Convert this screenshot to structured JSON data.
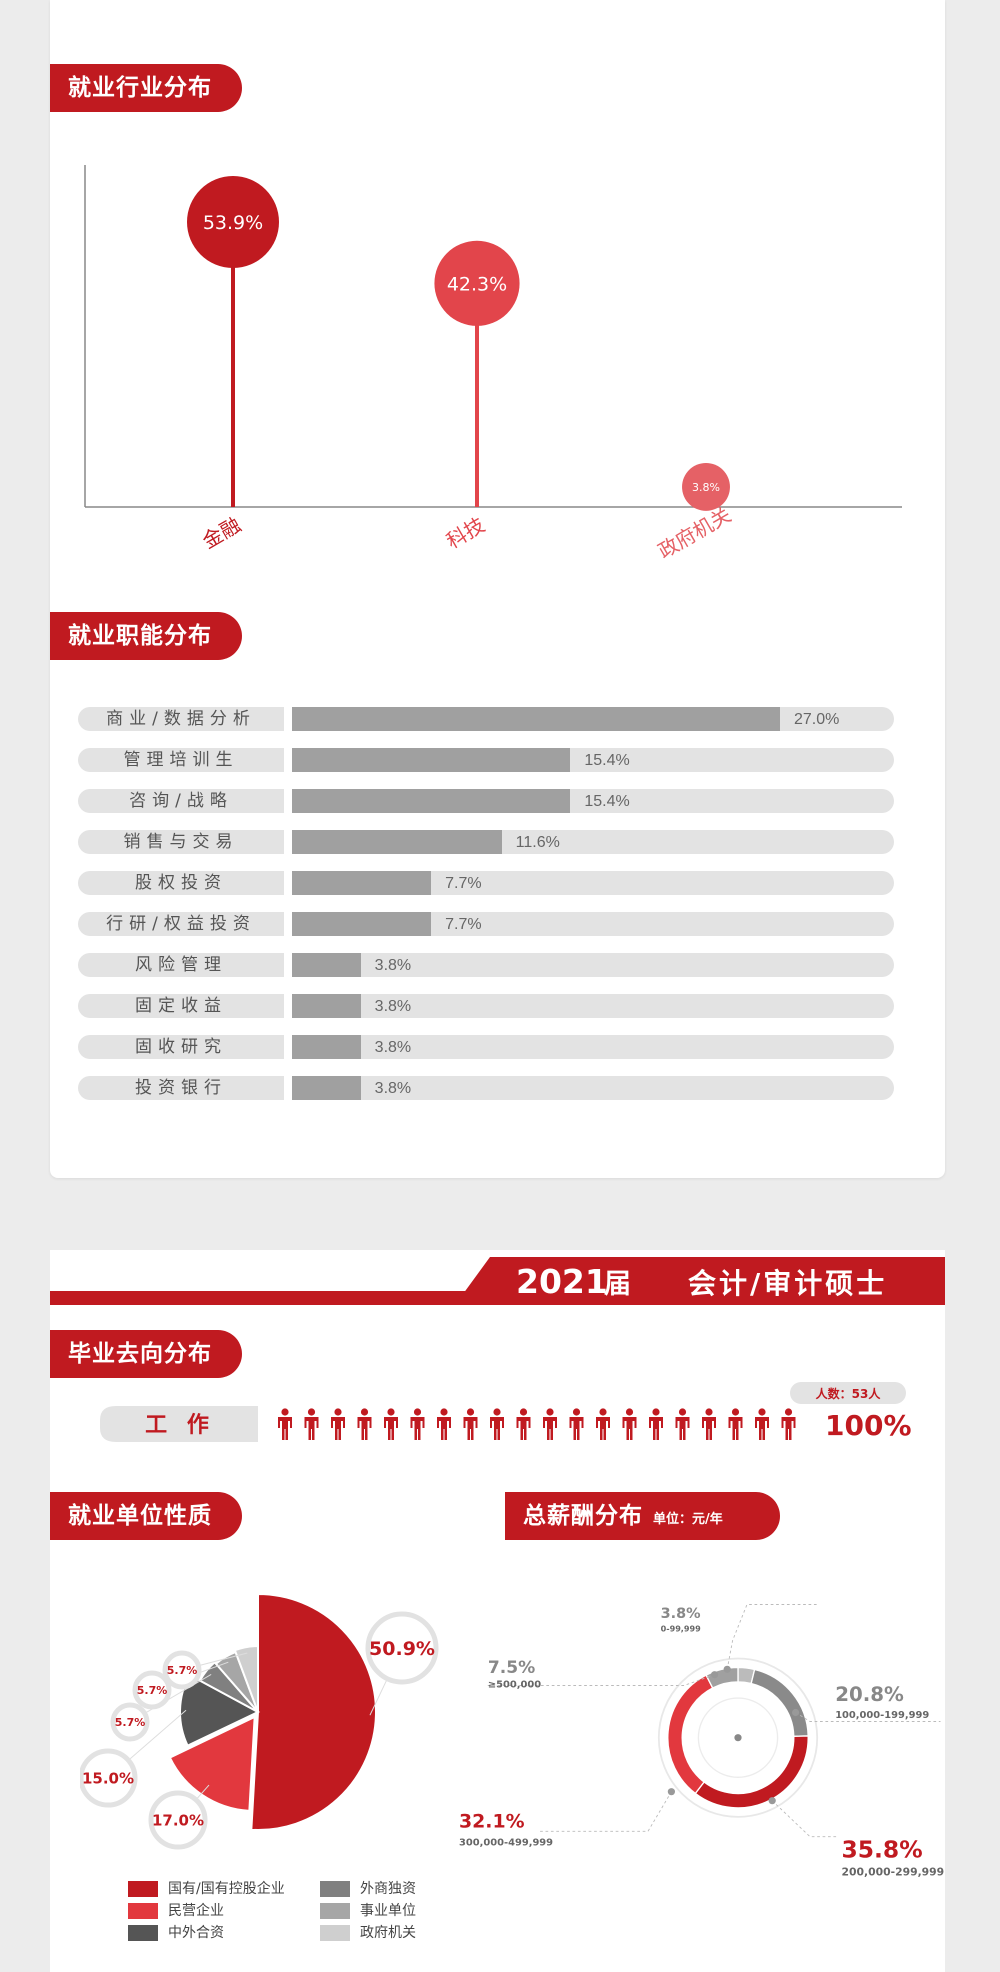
{
  "section1": {
    "title": "就业行业分布"
  },
  "industry_chart": {
    "type": "lollipop",
    "categories": [
      "金融",
      "科技",
      "政府机关"
    ],
    "values": [
      53.9,
      42.3,
      3.8
    ],
    "labels": [
      "53.9%",
      "42.3%",
      "3.8%"
    ],
    "colors": [
      "#c01a20",
      "#e2454b",
      "#e56166"
    ]
  },
  "section2": {
    "title": "就业职能分布"
  },
  "function_chart": {
    "type": "bar",
    "categories": [
      "商业/数据分析",
      "管理培训生",
      "咨询/战略",
      "销售与交易",
      "股权投资",
      "行研/权益投资",
      "风险管理",
      "固定收益",
      "固收研究",
      "投资银行"
    ],
    "values": [
      27.0,
      15.4,
      15.4,
      11.6,
      7.7,
      7.7,
      3.8,
      3.8,
      3.8,
      3.8
    ],
    "labels": [
      "27.0%",
      "15.4%",
      "15.4%",
      "11.6%",
      "7.7%",
      "7.7%",
      "3.8%",
      "3.8%",
      "3.8%",
      "3.8%"
    ],
    "max": 27.0
  },
  "banner": {
    "year": "2021",
    "suffix": "届",
    "program": "会计/审计硕士"
  },
  "section3": {
    "title": "毕业去向分布"
  },
  "destination": {
    "label": "工  作",
    "count_label": "人数：53人",
    "percent": "100%",
    "icon_count": 20
  },
  "section4": {
    "title": "就业单位性质"
  },
  "unit_chart": {
    "type": "pie",
    "categories": [
      "国有/国有控股企业",
      "民营企业",
      "中外合资",
      "外商独资",
      "事业单位",
      "政府机关"
    ],
    "values": [
      50.9,
      17.0,
      15.0,
      5.7,
      5.7,
      5.7
    ],
    "labels": [
      "50.9%",
      "17.0%",
      "15.0%",
      "5.7%",
      "5.7%",
      "5.7%"
    ],
    "colors": [
      "#c01a20",
      "#e2383e",
      "#555555",
      "#808080",
      "#a6a6a6",
      "#cfcfcf"
    ]
  },
  "section5": {
    "title": "总薪酬分布",
    "unit": "单位：元/年"
  },
  "salary_chart": {
    "type": "donut",
    "categories": [
      "0-99,999",
      "100,000-199,999",
      "200,000-299,999",
      "300,000-499,999",
      "≥500,000"
    ],
    "values": [
      3.8,
      20.8,
      35.8,
      32.1,
      7.5
    ],
    "labels": [
      "3.8%",
      "20.8%",
      "35.8%",
      "32.1%",
      "7.5%"
    ],
    "colors": [
      "#bbbbbb",
      "#8a8a8a",
      "#c01a20",
      "#e2383e",
      "#a0a0a0"
    ]
  }
}
